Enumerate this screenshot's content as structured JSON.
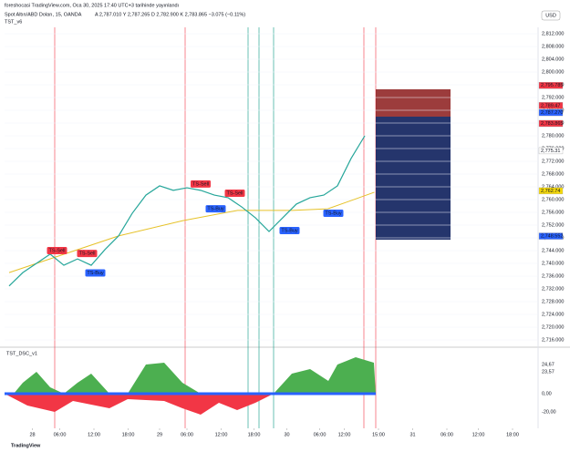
{
  "header": {
    "publish_line": "foreshocasi TradingView.com, Oca 30, 2025 17:40 UTC+3 tarihinde yayınlandı",
    "symbol": "Spot Altın/ABD Doları, 15, OANDA",
    "ohlc": "A 2,787.010  Y 2,787.265  D 2,782.900  K 2,783.865  −3.075 (−0.11%)",
    "indicator": "TST_v6"
  },
  "currency": "USD",
  "chart_data": {
    "type": "line",
    "ylim": [
      2714,
      2814
    ],
    "yticks": [
      {
        "value": 2716,
        "label": "2,716.000"
      },
      {
        "value": 2720,
        "label": "2,720.000"
      },
      {
        "value": 2724,
        "label": "2,724.000"
      },
      {
        "value": 2728,
        "label": "2,728.000"
      },
      {
        "value": 2732,
        "label": "2,732.000"
      },
      {
        "value": 2736,
        "label": "2,736.000"
      },
      {
        "value": 2740,
        "label": "2,740.000"
      },
      {
        "value": 2744,
        "label": "2,744.000"
      },
      {
        "value": 2748,
        "label": "2,748.000"
      },
      {
        "value": 2752,
        "label": "2,752.000"
      },
      {
        "value": 2756,
        "label": "2,756.000"
      },
      {
        "value": 2760,
        "label": "2,760.000"
      },
      {
        "value": 2764,
        "label": "2,764.000"
      },
      {
        "value": 2768,
        "label": "2,768.000"
      },
      {
        "value": 2772,
        "label": "2,772.000"
      },
      {
        "value": 2776,
        "label": "2,776.000"
      },
      {
        "value": 2780,
        "label": "2,780.000"
      },
      {
        "value": 2784,
        "label": "2,784.000"
      },
      {
        "value": 2788,
        "label": "2,788.000"
      },
      {
        "value": 2792,
        "label": "2,792.000"
      },
      {
        "value": 2796,
        "label": "2,796.000"
      },
      {
        "value": 2800,
        "label": "2,800.000"
      },
      {
        "value": 2804,
        "label": "2,804.000"
      },
      {
        "value": 2808,
        "label": "2,808.000"
      },
      {
        "value": 2812,
        "label": "2,812.000"
      }
    ],
    "xlim": [
      0,
      390
    ],
    "xticks": [
      {
        "value": 17,
        "label": "28"
      },
      {
        "value": 37,
        "label": "06:00"
      },
      {
        "value": 62,
        "label": "12:00"
      },
      {
        "value": 87,
        "label": "18:00"
      },
      {
        "value": 110,
        "label": "29"
      },
      {
        "value": 130,
        "label": "06:00"
      },
      {
        "value": 155,
        "label": "12:00"
      },
      {
        "value": 179,
        "label": "18:00"
      },
      {
        "value": 203,
        "label": "30"
      },
      {
        "value": 227,
        "label": "06:00"
      },
      {
        "value": 245,
        "label": "12:00"
      },
      {
        "value": 270,
        "label": "15:00"
      },
      {
        "value": 295,
        "label": "31"
      },
      {
        "value": 320,
        "label": "06:00"
      },
      {
        "value": 343,
        "label": "12:00"
      },
      {
        "value": 368,
        "label": "18:00"
      }
    ],
    "price": {
      "color": "#26a69a",
      "x": [
        0,
        10,
        20,
        30,
        40,
        50,
        60,
        70,
        80,
        90,
        100,
        110,
        120,
        130,
        140,
        150,
        160,
        170,
        180,
        190,
        200,
        210,
        220,
        230,
        240,
        250,
        260
      ],
      "values": [
        2732.9,
        2737.1,
        2740,
        2742.9,
        2739.4,
        2741.4,
        2739.4,
        2744.3,
        2748.6,
        2755.7,
        2761.4,
        2764.3,
        2762.9,
        2763.7,
        2762.9,
        2761.4,
        2760.6,
        2757.7,
        2754.3,
        2750,
        2754.3,
        2758.6,
        2760.6,
        2761.4,
        2764.3,
        2772.9,
        2780
      ]
    },
    "ma": {
      "color": "#e6c229",
      "x": [
        0,
        80,
        127,
        167,
        207,
        233,
        267
      ],
      "values": [
        2737.1,
        2748.6,
        2753.4,
        2756.6,
        2756.6,
        2757.1,
        2762.3
      ]
    },
    "signals": [
      {
        "label": "TS-Sell",
        "x": 35,
        "price": 2744
      },
      {
        "label": "TS-Sell",
        "x": 57,
        "price": 2743.1
      },
      {
        "label": "TS-Sell",
        "x": 140,
        "price": 2764.9
      },
      {
        "label": "TS-Sell",
        "x": 165,
        "price": 2762
      },
      {
        "label": "TS-Buy",
        "x": 63,
        "price": 2737
      },
      {
        "label": "TS-Buy",
        "x": 151,
        "price": 2757.1
      },
      {
        "label": "TS-Buy",
        "x": 205,
        "price": 2750.3
      },
      {
        "label": "TS-Buy",
        "x": 237,
        "price": 2755.7
      }
    ],
    "price_labels": [
      {
        "value": 2795.785,
        "label": "2,795.785",
        "color": "#f23645"
      },
      {
        "value": 2789.47,
        "label": "2,789.47",
        "color": "#f23645"
      },
      {
        "value": 2787.27,
        "label": "2,787.270",
        "color": "#2962ff"
      },
      {
        "value": 2783.865,
        "label": "2,783.865",
        "color": "#f23645"
      },
      {
        "value": 2775.31,
        "label": "2,775.31",
        "color": "#ffffff"
      },
      {
        "value": 2762.74,
        "label": "2,762.74",
        "color": "#f5d90a"
      },
      {
        "value": 2748.552,
        "label": "2,748.552",
        "color": "#2962ff"
      }
    ]
  },
  "lower_panel": {
    "title": "TST_DSC_v1",
    "labels": [
      "24,67",
      "23,57",
      "0,00",
      "-20,00"
    ]
  },
  "footer": "TradingView"
}
